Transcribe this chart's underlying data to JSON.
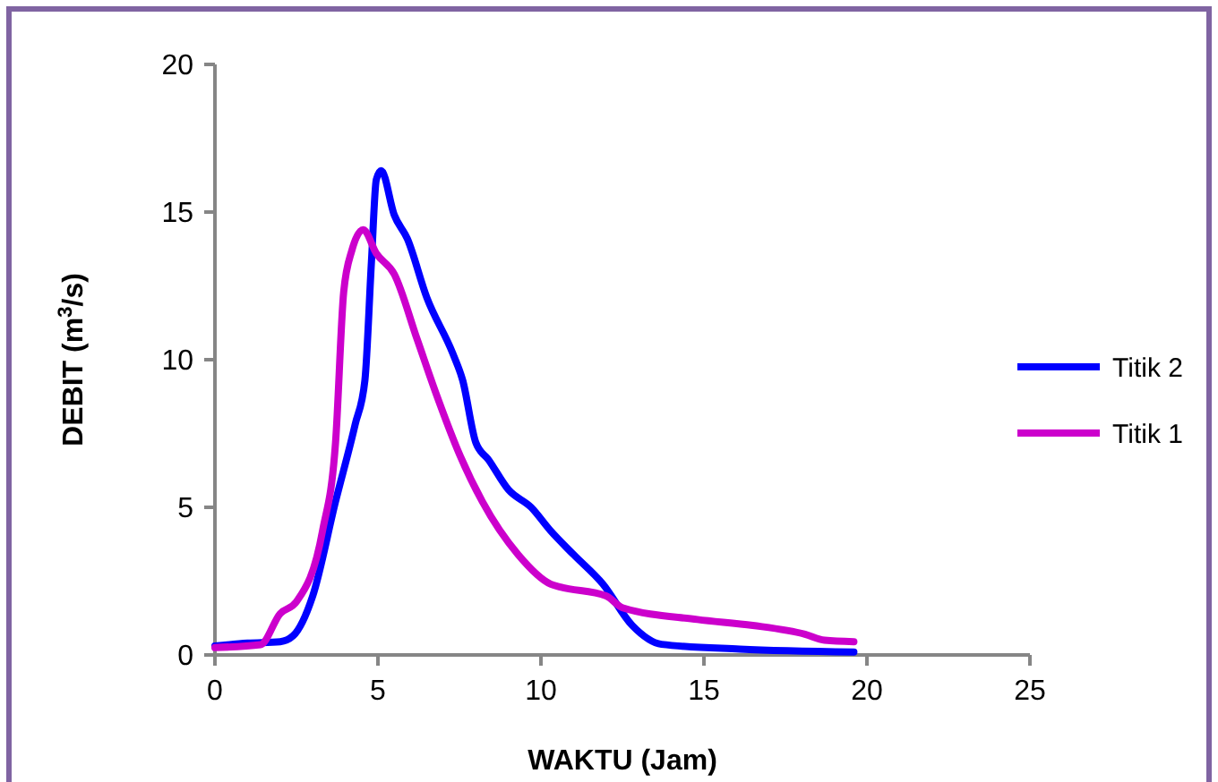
{
  "chart_data": {
    "type": "line",
    "xlabel": "WAKTU (Jam)",
    "ylabel": "DEBIT (m$^{3}$/s)",
    "xlim": [
      0,
      25
    ],
    "xticks": [
      0,
      5,
      10,
      15,
      20,
      25
    ],
    "ylim": [
      0,
      20
    ],
    "yticks": [
      0,
      5,
      10,
      15,
      20
    ],
    "legend": "right",
    "marker": "none",
    "line_style": "solid",
    "grid": false,
    "series": [
      {
        "name": "Titik 2",
        "color": "#0000ff",
        "x": [
          0,
          1,
          2,
          2.4,
          3,
          3.7,
          4.3,
          4.6,
          4.8,
          4.95,
          5.1,
          5.5,
          5.9,
          6.5,
          7.3,
          7.6,
          8,
          8.4,
          9,
          9.7,
          10.3,
          11,
          11.9,
          12.8,
          13.7,
          16.1,
          19.6
        ],
        "values": [
          0.3,
          0.4,
          0.45,
          0.65,
          2,
          5.2,
          7.8,
          9.3,
          13.3,
          16.1,
          16.4,
          14.9,
          14.1,
          12.1,
          10.2,
          9.3,
          7.2,
          6.6,
          5.6,
          5,
          4.2,
          3.4,
          2.4,
          1,
          0.36,
          0.2,
          0.1
        ]
      },
      {
        "name": "Titik 1",
        "color": "#cc00cc",
        "x": [
          0,
          1.4,
          2,
          2.5,
          3.3,
          3.7,
          3.95,
          4.2,
          4.55,
          4.95,
          5.5,
          6.2,
          6.8,
          7.5,
          8.2,
          9.3,
          10.3,
          10.6,
          12,
          12.5,
          14.8,
          16.5,
          18.1,
          18.7,
          19.6
        ],
        "values": [
          0.25,
          0.35,
          1.4,
          1.8,
          4.2,
          7.2,
          12.3,
          13.7,
          14.4,
          13.6,
          12.9,
          10.7,
          8.8,
          6.8,
          5.2,
          3.4,
          2.4,
          2.3,
          2,
          1.6,
          1.2,
          1,
          0.7,
          0.5,
          0.45
        ]
      }
    ]
  }
}
